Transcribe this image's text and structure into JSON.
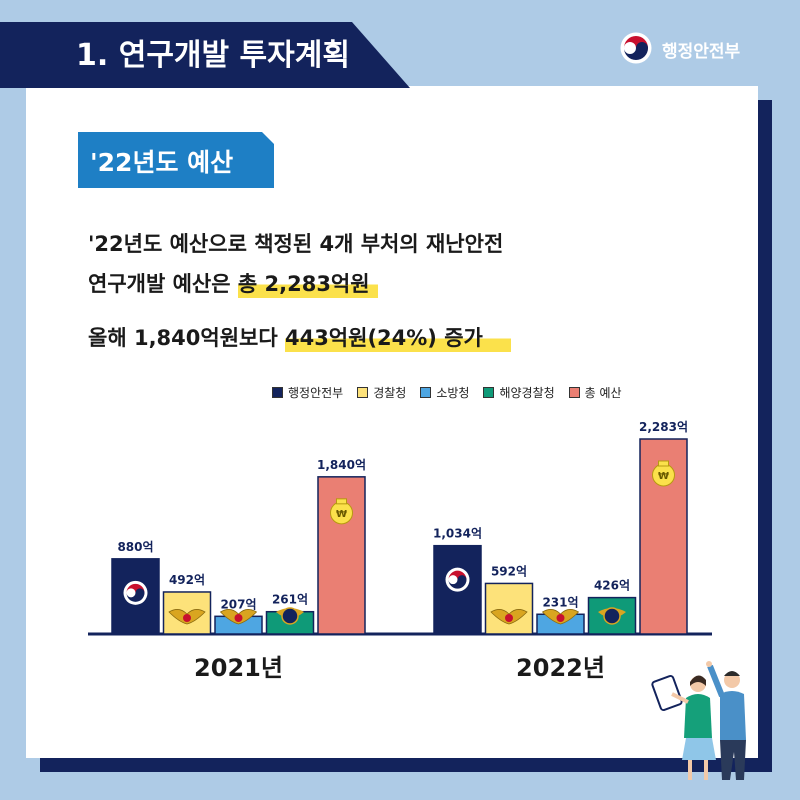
{
  "header": {
    "title": "1. 연구개발 투자계획",
    "org_name": "행정안전부"
  },
  "section_tag": "'22년도 예산",
  "summary": {
    "line1": "'22년도 예산으로 책정된 4개 부처의 재난안전",
    "line2_prefix": "연구개발 예산은 ",
    "line2_highlight": "총 2,283억원",
    "line3_prefix": "올해 1,840억원보다 ",
    "line3_highlight": "443억원(24%) 증가"
  },
  "colors": {
    "navy": "#13235c",
    "yellow": "#fbe14b",
    "blue": "#4ea6e2",
    "green": "#0f9a78",
    "salmon": "#ea7f73",
    "background": "#aecbe6",
    "tag_blue": "#1e7fc5"
  },
  "chart_data": {
    "type": "bar",
    "categories": [
      "2021년",
      "2022년"
    ],
    "series": [
      {
        "name": "행정안전부",
        "values": [
          880,
          1034
        ],
        "labels": [
          "880억",
          "1,034억"
        ],
        "color": "#13235c",
        "icon": "government-emblem-icon"
      },
      {
        "name": "경찰청",
        "values": [
          492,
          592
        ],
        "labels": [
          "492억",
          "592억"
        ],
        "color": "#fde27a",
        "icon": "police-badge-icon"
      },
      {
        "name": "소방청",
        "values": [
          207,
          231
        ],
        "labels": [
          "207억",
          "231억"
        ],
        "color": "#4ea6e2",
        "icon": "fire-service-badge-icon"
      },
      {
        "name": "해양경찰청",
        "values": [
          261,
          426
        ],
        "labels": [
          "261억",
          "426억"
        ],
        "color": "#0f9a78",
        "icon": "coast-guard-badge-icon"
      },
      {
        "name": "총  예산",
        "values": [
          1840,
          2283
        ],
        "labels": [
          "1,840억",
          "2,283억"
        ],
        "color": "#ea7f73",
        "icon": "money-bag-icon"
      }
    ],
    "unit": "억",
    "legend_position": "top-right",
    "grid": false,
    "ylim": [
      0,
      2283
    ]
  }
}
